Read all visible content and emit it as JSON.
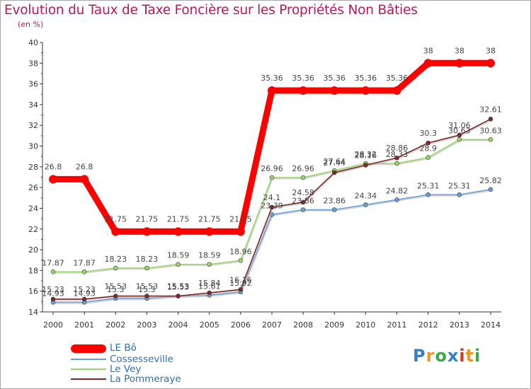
{
  "title": "Evolution du Taux de Taxe Foncière sur les Propriétés Non Bâties",
  "unit_label": "(en %)",
  "logo": {
    "text": "Proxiti",
    "letter_colors": [
      "#3a7fc4",
      "#e59a2b",
      "#3aa74a",
      "#3a7fc4",
      "#d3372b",
      "#e59a2b",
      "#3aa74a"
    ]
  },
  "chart_data": {
    "type": "line",
    "title": "Evolution du Taux de Taxe Foncière sur les Propriétés Non Bâties",
    "ylabel": "(en %)",
    "xlabel": "",
    "ylim": [
      14,
      40
    ],
    "yticks": [
      14,
      16,
      18,
      20,
      22,
      24,
      26,
      28,
      30,
      32,
      34,
      36,
      38,
      40
    ],
    "categories": [
      "2000",
      "2001",
      "2002",
      "2003",
      "2004",
      "2005",
      "2006",
      "2007",
      "2008",
      "2009",
      "2010",
      "2011",
      "2012",
      "2013",
      "2014"
    ],
    "series": [
      {
        "name": "LE Bô",
        "color": "#ff0000",
        "values": [
          26.8,
          26.8,
          21.75,
          21.75,
          21.75,
          21.75,
          21.75,
          35.36,
          35.36,
          35.36,
          35.36,
          35.36,
          38,
          38,
          38
        ],
        "labels": [
          "26.8",
          "26.8",
          "21.75",
          "21.75",
          "21.75",
          "21.75",
          "21.75",
          "35.36",
          "35.36",
          "35.36",
          "35.36",
          "35.36",
          "38",
          "38",
          "38"
        ]
      },
      {
        "name": "Cossesseville",
        "color": "#6b9fd4",
        "values": [
          14.93,
          14.93,
          15.3,
          15.3,
          15.53,
          15.61,
          15.92,
          23.39,
          23.86,
          23.86,
          24.34,
          24.82,
          25.31,
          25.31,
          25.82
        ],
        "labels": [
          "14.93",
          "14.93",
          "15.3",
          "15.3",
          "15.53",
          "15.61",
          "15.92",
          "23.39",
          "23.86",
          "23.86",
          "24.34",
          "24.82",
          "25.31",
          "25.31",
          "25.82"
        ]
      },
      {
        "name": "Le Vey",
        "color": "#98d468",
        "values": [
          17.87,
          17.87,
          18.23,
          18.23,
          18.59,
          18.59,
          18.96,
          26.96,
          26.96,
          27.64,
          28.32,
          28.33,
          28.9,
          30.63,
          30.63
        ],
        "labels": [
          "17.87",
          "17.87",
          "18.23",
          "18.23",
          "18.59",
          "18.59",
          "18.96",
          "26.96",
          "26.96",
          "27.64",
          "28.32",
          "28.33",
          "28.9",
          "30.63",
          "30.63"
        ]
      },
      {
        "name": "La Pommeraye",
        "color": "#7a2a2a",
        "values": [
          15.23,
          15.23,
          15.53,
          15.53,
          15.53,
          15.84,
          16.16,
          24.1,
          24.58,
          27.44,
          28.16,
          28.86,
          30.3,
          31.06,
          32.61
        ],
        "labels": [
          "15.23",
          "15.23",
          "15.53",
          "15.53",
          "15.53",
          "15.84",
          "16.16",
          "24.1",
          "24.58",
          "27.44",
          "28.16",
          "28.86",
          "30.3",
          "31.06",
          "32.61"
        ]
      }
    ]
  }
}
